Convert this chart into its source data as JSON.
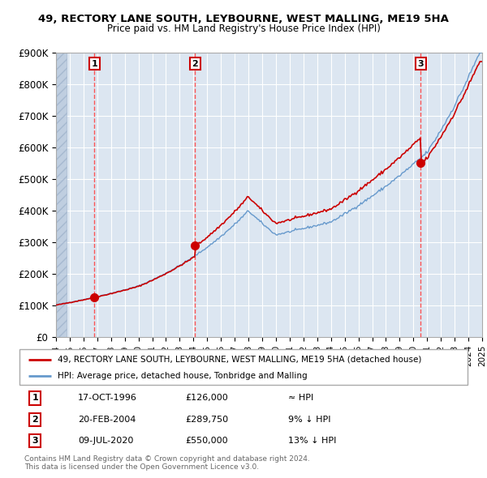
{
  "title_line1": "49, RECTORY LANE SOUTH, LEYBOURNE, WEST MALLING, ME19 5HA",
  "title_line2": "Price paid vs. HM Land Registry's House Price Index (HPI)",
  "ylim": [
    0,
    900000
  ],
  "yticks": [
    0,
    100000,
    200000,
    300000,
    400000,
    500000,
    600000,
    700000,
    800000,
    900000
  ],
  "ytick_labels": [
    "£0",
    "£100K",
    "£200K",
    "£300K",
    "£400K",
    "£500K",
    "£600K",
    "£700K",
    "£800K",
    "£900K"
  ],
  "sale_years_float": [
    1996.792,
    2004.125,
    2020.525
  ],
  "sale_prices": [
    126000,
    289750,
    550000
  ],
  "sale_labels": [
    "1",
    "2",
    "3"
  ],
  "sale_color": "#cc0000",
  "hpi_color": "#6699cc",
  "vline_color": "#ff4444",
  "marker_color": "#cc0000",
  "legend_sale_label": "49, RECTORY LANE SOUTH, LEYBOURNE, WEST MALLING, ME19 5HA (detached house)",
  "legend_hpi_label": "HPI: Average price, detached house, Tonbridge and Malling",
  "table_rows": [
    [
      "1",
      "17-OCT-1996",
      "£126,000",
      "≈ HPI"
    ],
    [
      "2",
      "20-FEB-2004",
      "£289,750",
      "9% ↓ HPI"
    ],
    [
      "3",
      "09-JUL-2020",
      "£550,000",
      "13% ↓ HPI"
    ]
  ],
  "footnote": "Contains HM Land Registry data © Crown copyright and database right 2024.\nThis data is licensed under the Open Government Licence v3.0.",
  "plot_bg_color": "#dce6f1",
  "grid_color": "#ffffff",
  "xstart_year": 1994,
  "xend_year": 2025
}
